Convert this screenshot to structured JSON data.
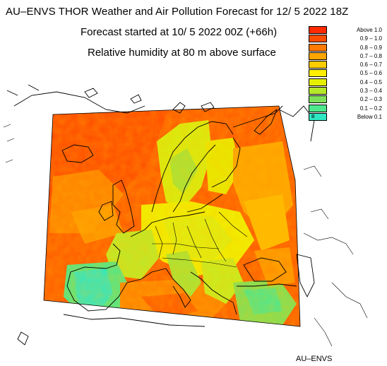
{
  "header": {
    "title": "AU–ENVS THOR Weather and Air Pollution Forecast for 12/ 5 2022  18Z",
    "subtitle_forecast": "Forecast started at 10/ 5 2022  00Z (+66h)",
    "subtitle_field": "Relative humidity at 80 m above surface"
  },
  "legend": {
    "items": [
      {
        "label": "Above   1.0",
        "color": "#ff2a00"
      },
      {
        "label": "0.9 – 1.0",
        "color": "#ff4d00"
      },
      {
        "label": "0.8 – 0.9",
        "color": "#ff7a00"
      },
      {
        "label": "0.7 – 0.8",
        "color": "#ffa500"
      },
      {
        "label": "0.6 – 0.7",
        "color": "#ffcc00"
      },
      {
        "label": "0.5 – 0.6",
        "color": "#ffee00"
      },
      {
        "label": "0.4 – 0.5",
        "color": "#e5f000"
      },
      {
        "label": "0.3 – 0.4",
        "color": "#b6e82a"
      },
      {
        "label": "0.2 – 0.3",
        "color": "#7ee05a"
      },
      {
        "label": "0.1 – 0.2",
        "color": "#4de88c"
      },
      {
        "label": "Below   0.1",
        "color": "#2ee8c4"
      }
    ],
    "below_marker": "B"
  },
  "footer": {
    "brand": "AU–ENVS"
  }
}
